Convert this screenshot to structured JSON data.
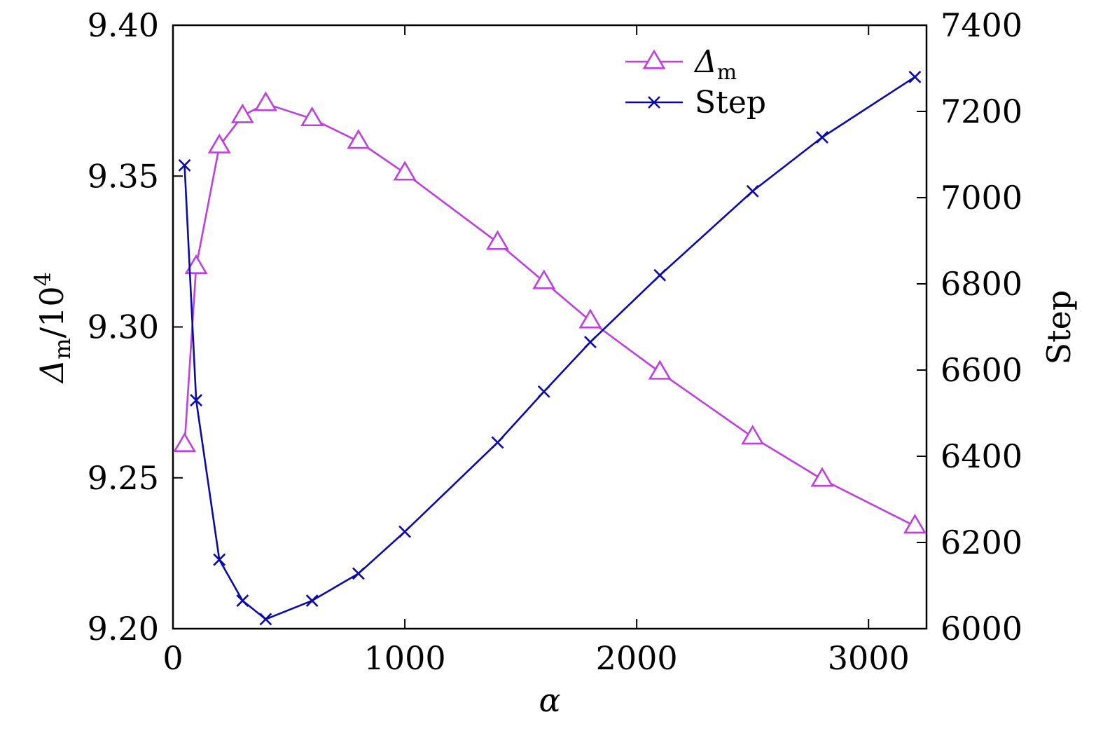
{
  "chart_data": {
    "type": "line",
    "title": "",
    "xlabel": "α",
    "ylabel_left": {
      "main": "Δ",
      "sub": "m",
      "rest": "/10",
      "sup": "4"
    },
    "ylabel_right": "Step",
    "xlim": [
      0,
      3250
    ],
    "ylim_left": [
      9.2,
      9.4
    ],
    "ylim_right": [
      6000,
      7400
    ],
    "x_ticks": [
      0,
      1000,
      2000,
      3000
    ],
    "x_tick_labels": [
      "0",
      "1000",
      "2000",
      "3000"
    ],
    "y_left_ticks": [
      9.2,
      9.25,
      9.3,
      9.35,
      9.4
    ],
    "y_left_tick_labels": [
      "9.20",
      "9.25",
      "9.30",
      "9.35",
      "9.40"
    ],
    "y_right_ticks": [
      6000,
      6200,
      6400,
      6600,
      6800,
      7000,
      7200,
      7400
    ],
    "y_right_tick_labels": [
      "6000",
      "6200",
      "6400",
      "6600",
      "6800",
      "7000",
      "7200",
      "7400"
    ],
    "grid": false,
    "legend_position": "top-right",
    "series": [
      {
        "name": "Δm",
        "legend": {
          "main": "Δ",
          "sub": "m"
        },
        "axis": "left",
        "marker": "triangle",
        "color": "#bf3fdf",
        "x": [
          50,
          100,
          200,
          300,
          400,
          600,
          800,
          1000,
          1400,
          1600,
          1800,
          2100,
          2500,
          2800,
          3200
        ],
        "values": [
          9.261,
          9.32,
          9.36,
          9.37,
          9.374,
          9.369,
          9.3615,
          9.351,
          9.328,
          9.315,
          9.302,
          9.285,
          9.2635,
          9.2495,
          9.234
        ]
      },
      {
        "name": "Step",
        "legend": {
          "main": "Step",
          "sub": ""
        },
        "axis": "right",
        "marker": "x",
        "color": "#0a0aaa",
        "x": [
          50,
          100,
          200,
          300,
          400,
          600,
          800,
          1000,
          1400,
          1600,
          1800,
          2100,
          2500,
          2800,
          3200
        ],
        "values": [
          7075,
          6530,
          6160,
          6065,
          6022,
          6065,
          6128,
          6225,
          6432,
          6550,
          6665,
          6820,
          7015,
          7140,
          7280
        ]
      }
    ]
  }
}
